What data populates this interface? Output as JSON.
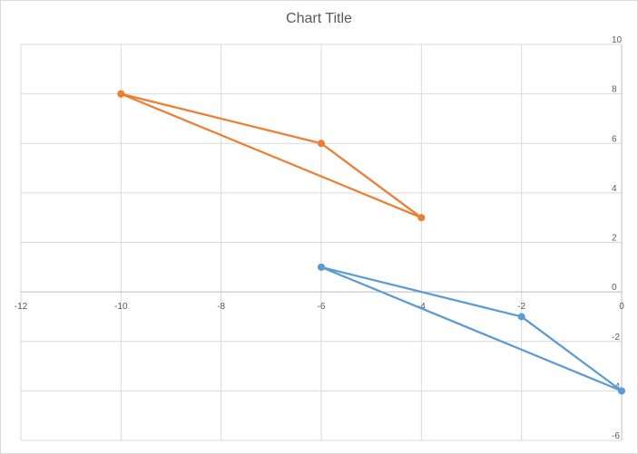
{
  "chart_data": {
    "type": "scatter",
    "title": "Chart Title",
    "xlabel": "",
    "ylabel": "",
    "xlim": [
      -12,
      0
    ],
    "ylim": [
      -6,
      10
    ],
    "x_ticks": [
      -12,
      -10,
      -8,
      -6,
      -4,
      -2,
      0
    ],
    "y_ticks": [
      -6,
      -4,
      -2,
      0,
      2,
      4,
      6,
      8,
      10
    ],
    "grid": true,
    "legend": "none",
    "series": [
      {
        "color": "#5b9bd5",
        "points": [
          [
            -6,
            1
          ],
          [
            -2,
            -1
          ],
          [
            0,
            -4
          ],
          [
            -6,
            1
          ]
        ]
      },
      {
        "color": "#ed7d31",
        "points": [
          [
            -10,
            8
          ],
          [
            -6,
            6
          ],
          [
            -4,
            3
          ],
          [
            -10,
            8
          ]
        ]
      }
    ]
  }
}
